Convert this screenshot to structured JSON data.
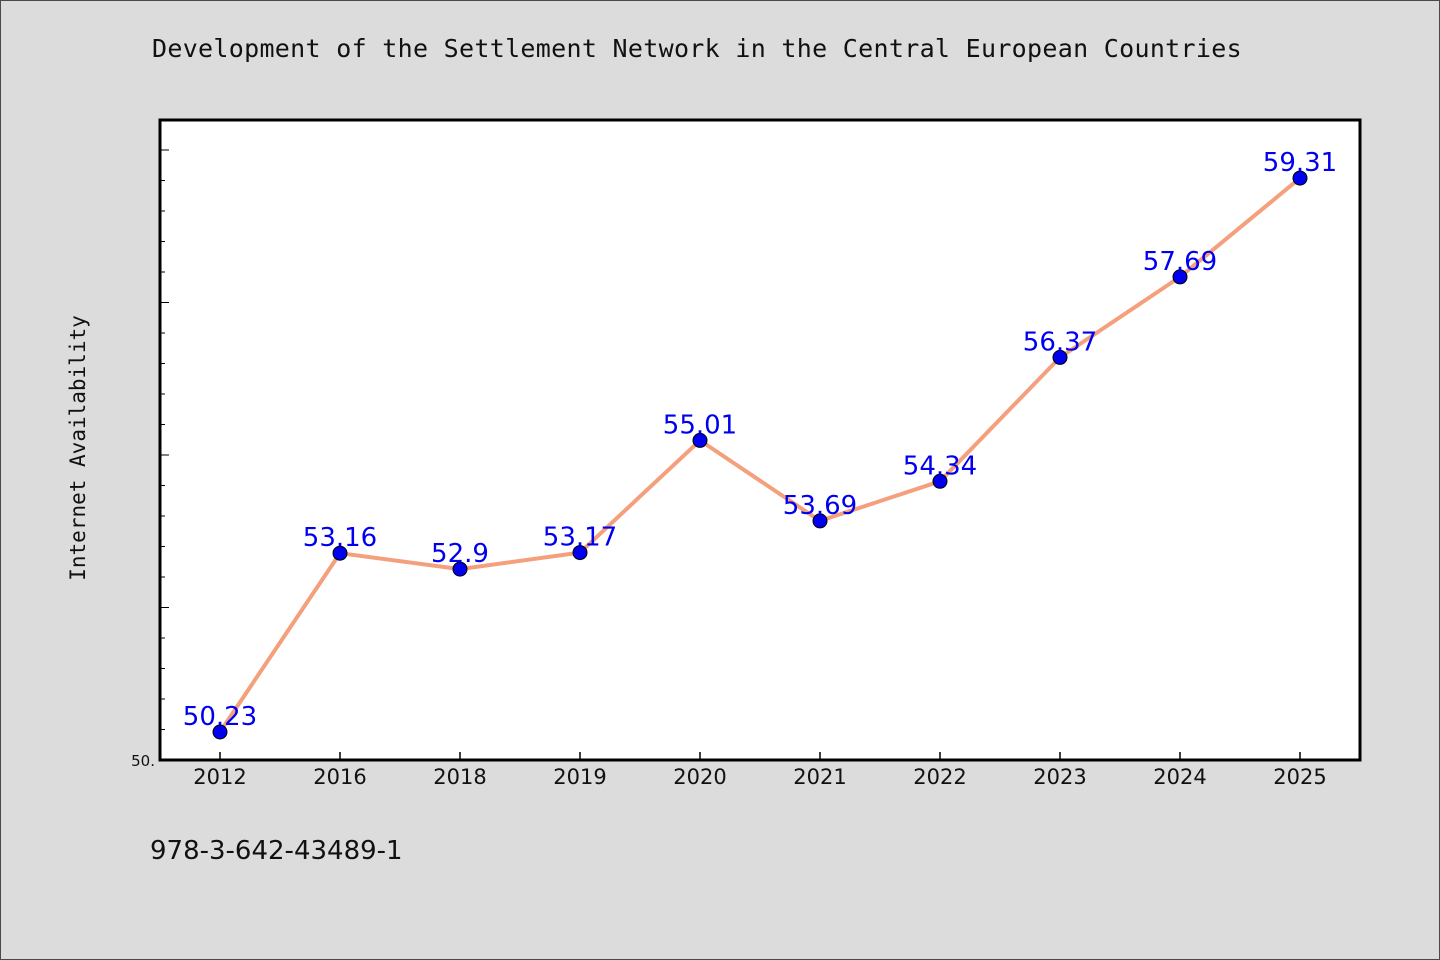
{
  "chart_data": {
    "type": "line",
    "title": "Development of the Settlement Network in the Central European Countries",
    "xlabel": "",
    "ylabel": "Internet Availability",
    "categories": [
      "2012",
      "2016",
      "2018",
      "2019",
      "2020",
      "2021",
      "2022",
      "2023",
      "2024",
      "2025"
    ],
    "series": [
      {
        "values": [
          50.23,
          53.16,
          52.9,
          53.17,
          55.01,
          53.69,
          54.34,
          56.37,
          57.69,
          59.31
        ]
      }
    ],
    "data_labels": [
      "50.23",
      "53.16",
      "52.9",
      "53.17",
      "55.01",
      "53.69",
      "54.34",
      "56.37",
      "57.69",
      "59.31"
    ],
    "y_tick_label": "50.",
    "ylim": [
      50,
      60.5
    ],
    "grid": false,
    "line_color": "#f4a07c",
    "marker_color": "#0000ee",
    "label_color": "#0000ee"
  },
  "footer": {
    "code": "978-3-642-43489-1"
  }
}
